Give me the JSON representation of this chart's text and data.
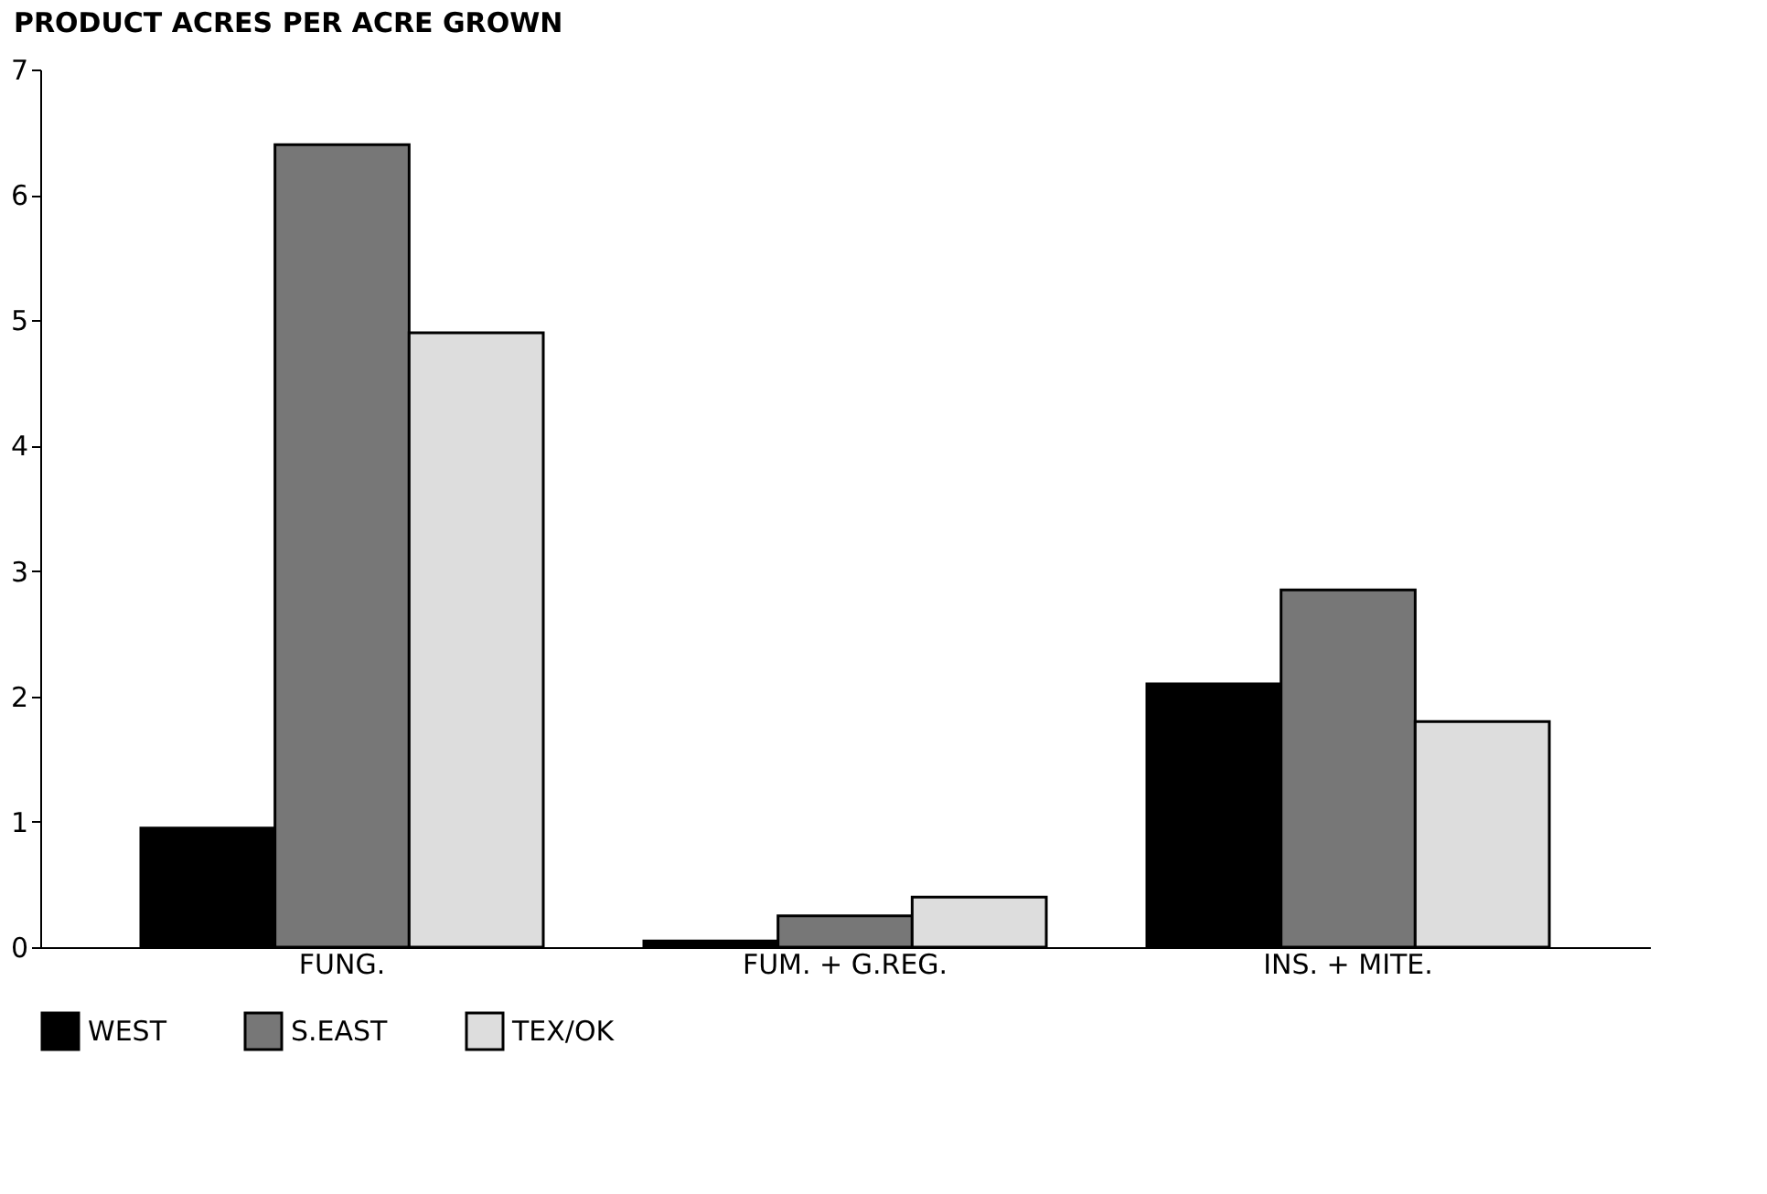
{
  "chart_data": {
    "type": "bar",
    "ylabel": "PRODUCT ACRES PER ACRE GROWN",
    "categories": [
      "FUNG.",
      "FUM. + G.REG.",
      "INS. + MITE."
    ],
    "series": [
      {
        "name": "WEST",
        "color": "#000000",
        "values": [
          0.95,
          0.05,
          2.1
        ]
      },
      {
        "name": "S.EAST",
        "color": "#777777",
        "values": [
          6.4,
          0.25,
          2.85
        ]
      },
      {
        "name": "TEX/OK",
        "color": "#dddddd",
        "values": [
          4.9,
          0.4,
          1.8
        ]
      }
    ],
    "ylim": [
      0,
      7
    ],
    "yticks": [
      0,
      1,
      2,
      3,
      4,
      5,
      6,
      7
    ],
    "grid": false,
    "legend": "bottom"
  }
}
